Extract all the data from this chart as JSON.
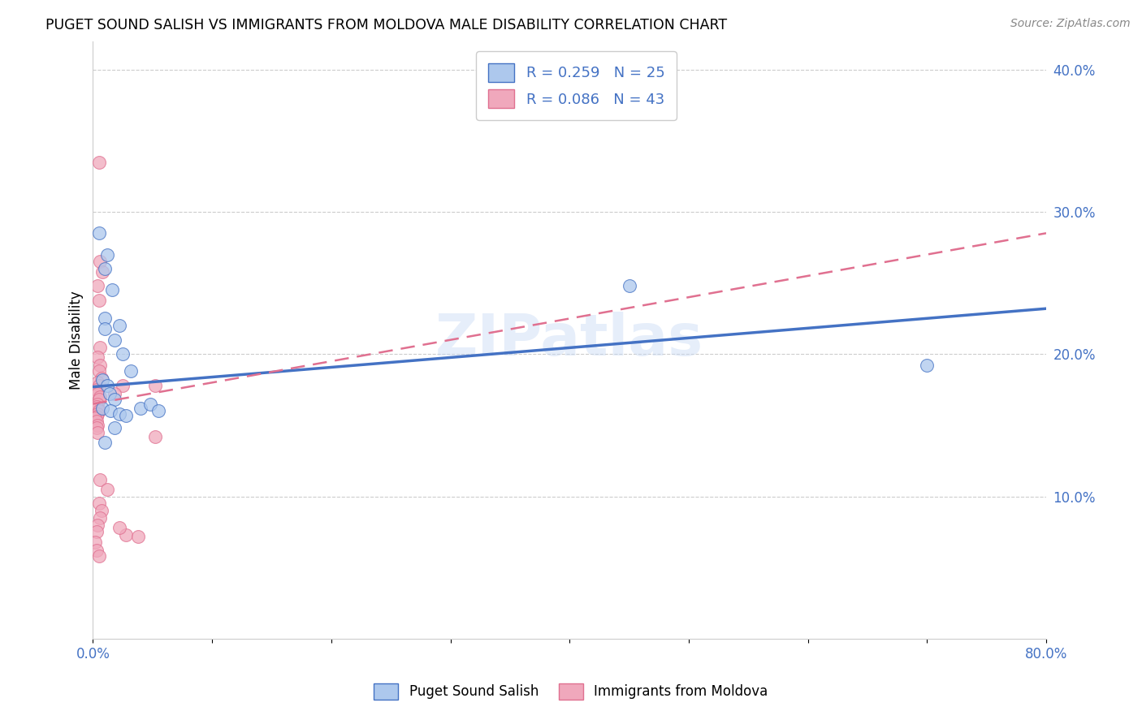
{
  "title": "PUGET SOUND SALISH VS IMMIGRANTS FROM MOLDOVA MALE DISABILITY CORRELATION CHART",
  "source": "Source: ZipAtlas.com",
  "ylabel": "Male Disability",
  "xlim": [
    0.0,
    0.8
  ],
  "ylim": [
    0.0,
    0.42
  ],
  "legend_label1": "R = 0.259   N = 25",
  "legend_label2": "R = 0.086   N = 43",
  "legend_series1": "Puget Sound Salish",
  "legend_series2": "Immigrants from Moldova",
  "color_blue": "#adc8ed",
  "color_pink": "#f0a8bc",
  "color_blue_line": "#4472c4",
  "color_pink_line": "#e07090",
  "blue_points": [
    [
      0.005,
      0.285
    ],
    [
      0.012,
      0.27
    ],
    [
      0.01,
      0.26
    ],
    [
      0.016,
      0.245
    ],
    [
      0.01,
      0.225
    ],
    [
      0.022,
      0.22
    ],
    [
      0.01,
      0.218
    ],
    [
      0.018,
      0.21
    ],
    [
      0.025,
      0.2
    ],
    [
      0.032,
      0.188
    ],
    [
      0.008,
      0.182
    ],
    [
      0.012,
      0.178
    ],
    [
      0.014,
      0.172
    ],
    [
      0.018,
      0.168
    ],
    [
      0.008,
      0.162
    ],
    [
      0.015,
      0.16
    ],
    [
      0.022,
      0.158
    ],
    [
      0.028,
      0.157
    ],
    [
      0.04,
      0.162
    ],
    [
      0.048,
      0.165
    ],
    [
      0.055,
      0.16
    ],
    [
      0.018,
      0.148
    ],
    [
      0.01,
      0.138
    ],
    [
      0.45,
      0.248
    ],
    [
      0.7,
      0.192
    ]
  ],
  "pink_points": [
    [
      0.005,
      0.335
    ],
    [
      0.006,
      0.265
    ],
    [
      0.008,
      0.258
    ],
    [
      0.004,
      0.248
    ],
    [
      0.005,
      0.238
    ],
    [
      0.006,
      0.205
    ],
    [
      0.004,
      0.198
    ],
    [
      0.006,
      0.192
    ],
    [
      0.005,
      0.188
    ],
    [
      0.007,
      0.183
    ],
    [
      0.004,
      0.18
    ],
    [
      0.005,
      0.178
    ],
    [
      0.003,
      0.175
    ],
    [
      0.004,
      0.172
    ],
    [
      0.006,
      0.17
    ],
    [
      0.005,
      0.168
    ],
    [
      0.004,
      0.165
    ],
    [
      0.003,
      0.163
    ],
    [
      0.005,
      0.16
    ],
    [
      0.004,
      0.158
    ],
    [
      0.003,
      0.156
    ],
    [
      0.002,
      0.155
    ],
    [
      0.003,
      0.153
    ],
    [
      0.004,
      0.15
    ],
    [
      0.003,
      0.148
    ],
    [
      0.004,
      0.145
    ],
    [
      0.025,
      0.178
    ],
    [
      0.018,
      0.172
    ],
    [
      0.052,
      0.178
    ],
    [
      0.052,
      0.142
    ],
    [
      0.006,
      0.112
    ],
    [
      0.012,
      0.105
    ],
    [
      0.005,
      0.095
    ],
    [
      0.007,
      0.09
    ],
    [
      0.006,
      0.085
    ],
    [
      0.004,
      0.08
    ],
    [
      0.003,
      0.075
    ],
    [
      0.028,
      0.073
    ],
    [
      0.002,
      0.068
    ],
    [
      0.003,
      0.062
    ],
    [
      0.005,
      0.058
    ],
    [
      0.038,
      0.072
    ],
    [
      0.022,
      0.078
    ]
  ],
  "blue_line": [
    [
      0.0,
      0.177
    ],
    [
      0.8,
      0.232
    ]
  ],
  "pink_line": [
    [
      0.0,
      0.165
    ],
    [
      0.8,
      0.285
    ]
  ]
}
